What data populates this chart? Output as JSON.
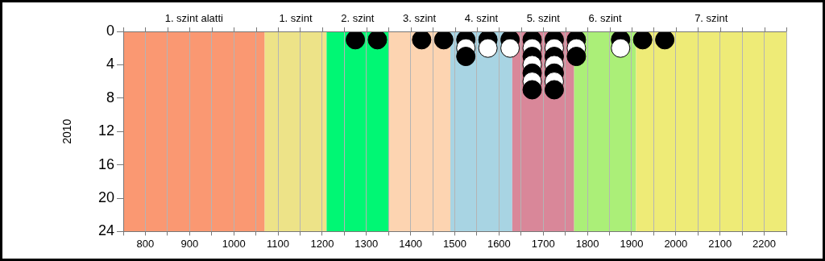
{
  "chart_data": {
    "type": "scatter",
    "ylabel": "2010",
    "xlim": [
      750,
      2250
    ],
    "ylim": [
      24,
      0
    ],
    "xticks": [
      {
        "value": 750,
        "label": null
      },
      800,
      {
        "value": 850,
        "label": null
      },
      900,
      {
        "value": 950,
        "label": null
      },
      1000,
      {
        "value": 1050,
        "label": null
      },
      1100,
      {
        "value": 1150,
        "label": null
      },
      1200,
      {
        "value": 1250,
        "label": null
      },
      1300,
      {
        "value": 1350,
        "label": null
      },
      1400,
      {
        "value": 1450,
        "label": null
      },
      1500,
      {
        "value": 1550,
        "label": null
      },
      1600,
      {
        "value": 1650,
        "label": null
      },
      1700,
      {
        "value": 1750,
        "label": null
      },
      1800,
      {
        "value": 1850,
        "label": null
      },
      1900,
      {
        "value": 1950,
        "label": null
      },
      2000,
      {
        "value": 2050,
        "label": null
      },
      2100,
      {
        "value": 2150,
        "label": null
      },
      2200,
      {
        "value": 2250,
        "label": null
      }
    ],
    "yticks": [
      0,
      4,
      8,
      12,
      16,
      20,
      24
    ],
    "grid": "x",
    "legend": false,
    "marker": "circle",
    "bands": [
      {
        "axis": "x",
        "from": 750,
        "to": 1070,
        "label": "1. szint alatti",
        "color": "#fa9872"
      },
      {
        "axis": "x",
        "from": 1070,
        "to": 1210,
        "label": "1. szint",
        "color": "#ede388"
      },
      {
        "axis": "x",
        "from": 1210,
        "to": 1350,
        "label": "2. szint",
        "color": "#00f774"
      },
      {
        "axis": "x",
        "from": 1350,
        "to": 1490,
        "label": "3. szint",
        "color": "#fdd4b1"
      },
      {
        "axis": "x",
        "from": 1490,
        "to": 1630,
        "label": "4. szint",
        "color": "#a8d4e3"
      },
      {
        "axis": "x",
        "from": 1630,
        "to": 1770,
        "label": "5. szint",
        "color": "#d98799"
      },
      {
        "axis": "x",
        "from": 1770,
        "to": 1910,
        "label": "6. szint",
        "color": "#abef78"
      },
      {
        "axis": "x",
        "from": 1910,
        "to": 2250,
        "label": "7. szint",
        "color": "#eeeb77"
      }
    ],
    "series": [
      {
        "x": [
          1275,
          1325,
          1425,
          1475,
          1525,
          1575,
          1625,
          1675,
          1725,
          1775,
          1875,
          1925,
          1975,
          1525,
          1575,
          1625,
          1675,
          1725,
          1775,
          1875,
          1525,
          1675,
          1725,
          1775,
          1675,
          1725,
          1675,
          1725,
          1675,
          1725,
          1675,
          1725
        ],
        "values": [
          1,
          1,
          1,
          1,
          1,
          1,
          1,
          1,
          1,
          1,
          1,
          1,
          1,
          2,
          2,
          2,
          2,
          2,
          2,
          2,
          3,
          3,
          3,
          3,
          4,
          4,
          5,
          5,
          6,
          6,
          7,
          7
        ],
        "colors": [
          "#000000",
          "#000000",
          "#000000",
          "#000000",
          "#000000",
          "#000000",
          "#000000",
          "#000000",
          "#000000",
          "#000000",
          "#000000",
          "#000000",
          "#000000",
          "#ffffff",
          "#ffffff",
          "#ffffff",
          "#ffffff",
          "#ffffff",
          "#ffffff",
          "#ffffff",
          "#000000",
          "#000000",
          "#000000",
          "#000000",
          "#ffffff",
          "#ffffff",
          "#000000",
          "#000000",
          "#ffffff",
          "#ffffff",
          "#000000",
          "#000000"
        ]
      }
    ]
  }
}
